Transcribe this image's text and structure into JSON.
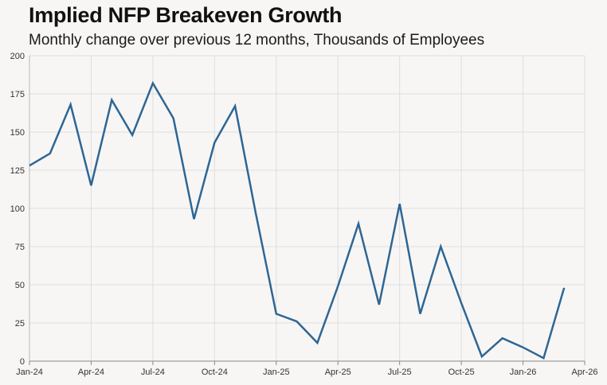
{
  "chart_data": {
    "type": "line",
    "title": "Implied NFP Breakeven Growth",
    "subtitle": "Monthly change over previous 12 months, Thousands of Employees",
    "xlabel": "",
    "ylabel": "",
    "ylim": [
      0,
      200
    ],
    "yticks": [
      0,
      25,
      50,
      75,
      100,
      125,
      150,
      175,
      200
    ],
    "xtick_labels": [
      "Jan-24",
      "Apr-24",
      "Jul-24",
      "Oct-24",
      "Jan-25",
      "Apr-25",
      "Jul-25",
      "Oct-25",
      "Jan-26",
      "Apr-26"
    ],
    "grid": true,
    "line_color": "#2e6694",
    "series": [
      {
        "name": "Implied NFP Breakeven Growth",
        "x": [
          "Jan-24",
          "Feb-24",
          "Mar-24",
          "Apr-24",
          "May-24",
          "Jun-24",
          "Jul-24",
          "Aug-24",
          "Sep-24",
          "Oct-24",
          "Nov-24",
          "Dec-24",
          "Jan-25",
          "Feb-25",
          "Mar-25",
          "Apr-25",
          "May-25",
          "Jun-25",
          "Jul-25",
          "Aug-25",
          "Sep-25",
          "Oct-25",
          "Nov-25",
          "Dec-25",
          "Jan-26",
          "Feb-26",
          "Mar-26"
        ],
        "values": [
          128,
          136,
          168,
          115,
          171,
          148,
          182,
          159,
          93,
          143,
          167,
          97,
          31,
          26,
          12,
          49,
          90,
          37,
          103,
          31,
          75,
          38,
          3,
          15,
          9,
          2,
          48
        ]
      }
    ]
  }
}
